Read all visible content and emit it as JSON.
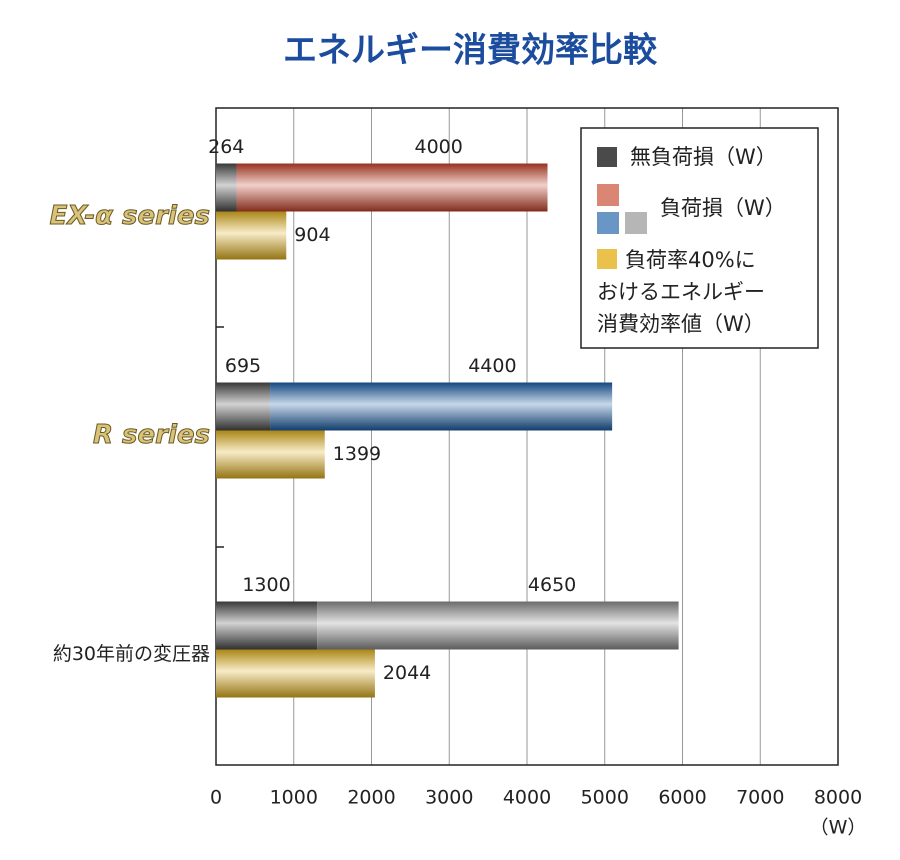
{
  "chart_data": {
    "type": "stacked-hbar",
    "title": "エネルギー消費効率比較",
    "categories": [
      "EX-α series",
      "R series",
      "約30年前の変圧器"
    ],
    "series": [
      {
        "name": "無負荷損（W）",
        "color": "#4a4a4a",
        "stacked": true,
        "values": [
          264,
          695,
          1300
        ]
      },
      {
        "name": "負荷損（W）",
        "colors": [
          "#c8432a",
          "#1a5ea8",
          "#8e8e8e"
        ],
        "stacked": true,
        "values": [
          4000,
          4400,
          4650
        ]
      },
      {
        "name": "負荷率40%におけるエネルギー消費効率値（W）",
        "color": "#e3b21e",
        "stacked": false,
        "values": [
          904,
          1399,
          2044
        ]
      }
    ],
    "xlim": [
      0,
      8000
    ],
    "xticks": [
      0,
      1000,
      2000,
      3000,
      4000,
      5000,
      6000,
      7000,
      8000
    ],
    "x_unit": "（W）",
    "grid": true
  }
}
